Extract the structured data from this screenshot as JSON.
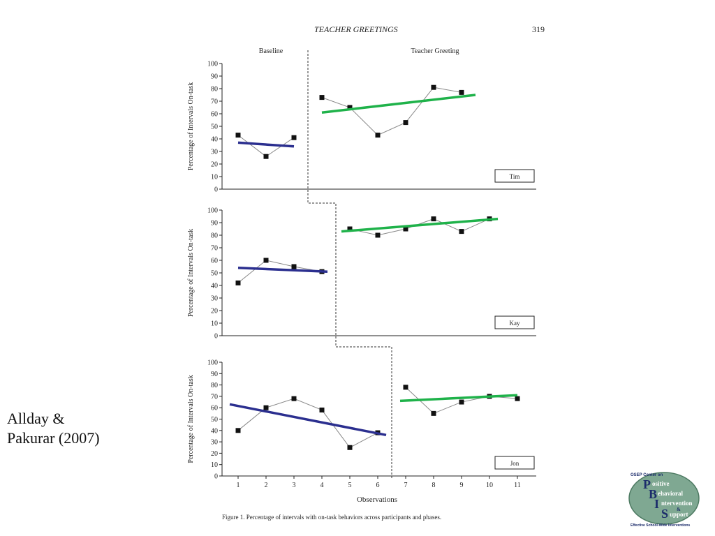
{
  "running_head": "TEACHER GREETINGS",
  "page_number": "319",
  "citation": {
    "line1": "Allday &",
    "line2": "Pakurar (2007)"
  },
  "figure_caption": "Figure 1.   Percentage of intervals with on-task behaviors across participants and phases.",
  "logo": {
    "top_text": "OSEP Center on",
    "lines": [
      "ositive",
      "ehavioral",
      "ntervention",
      "&",
      "upport"
    ],
    "letters": [
      "P",
      "B",
      "I",
      "S"
    ],
    "tagline": "Effective School-Wide Interventions"
  },
  "colors": {
    "baseline_trend": "#2b2f8f",
    "treatment_trend": "#1fb24a",
    "data_line": "#888888",
    "marker": "#111111"
  },
  "chart_data": {
    "type": "line",
    "phase_labels": [
      "Baseline",
      "Teacher Greeting"
    ],
    "ylabel": "Percentage of Intervals On-task",
    "xlabel": "Observations",
    "x_ticks": [
      "1",
      "2",
      "3",
      "4",
      "5",
      "6",
      "7",
      "8",
      "9",
      "10",
      "11"
    ],
    "ylim": [
      0,
      100
    ],
    "y_ticks": [
      0,
      10,
      20,
      30,
      40,
      50,
      60,
      70,
      80,
      90,
      100
    ],
    "panels": [
      {
        "participant": "Tim",
        "baseline": {
          "x": [
            1,
            2,
            3
          ],
          "y": [
            43,
            26,
            41
          ]
        },
        "treatment": {
          "x": [
            4,
            5,
            6,
            7,
            8,
            9
          ],
          "y": [
            73,
            65,
            43,
            53,
            81,
            77
          ]
        },
        "baseline_trend": {
          "x": [
            1,
            3
          ],
          "y": [
            37,
            34
          ]
        },
        "treatment_trend": {
          "x": [
            4,
            9.5
          ],
          "y": [
            61,
            75
          ]
        },
        "phase_change_after": 3.5
      },
      {
        "participant": "Kay",
        "baseline": {
          "x": [
            1,
            2,
            3,
            4
          ],
          "y": [
            42,
            60,
            55,
            51
          ]
        },
        "treatment": {
          "x": [
            5,
            6,
            7,
            8,
            9,
            10
          ],
          "y": [
            85,
            80,
            85,
            93,
            83,
            93
          ]
        },
        "baseline_trend": {
          "x": [
            1,
            4.2
          ],
          "y": [
            54,
            51
          ]
        },
        "treatment_trend": {
          "x": [
            4.7,
            10.3
          ],
          "y": [
            83,
            93
          ]
        },
        "phase_change_after": 4.5
      },
      {
        "participant": "Jon",
        "baseline": {
          "x": [
            1,
            2,
            3,
            4,
            5,
            6
          ],
          "y": [
            40,
            60,
            68,
            58,
            25,
            38
          ]
        },
        "treatment": {
          "x": [
            7,
            8,
            9,
            10,
            11
          ],
          "y": [
            78,
            55,
            65,
            70,
            68
          ]
        },
        "baseline_trend": {
          "x": [
            0.7,
            6.3
          ],
          "y": [
            63,
            36
          ]
        },
        "treatment_trend": {
          "x": [
            6.8,
            11
          ],
          "y": [
            66,
            71
          ]
        },
        "phase_change_after": 6.5
      }
    ]
  }
}
